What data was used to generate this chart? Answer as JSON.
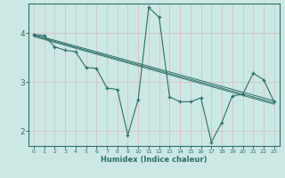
{
  "xlabel": "Humidex (Indice chaleur)",
  "bg_color": "#cce8e4",
  "grid_color": "#d4c8c8",
  "line_color": "#2d7068",
  "xlim": [
    -0.5,
    23.5
  ],
  "ylim": [
    1.7,
    4.6
  ],
  "yticks": [
    2,
    3,
    4
  ],
  "xticks": [
    0,
    1,
    2,
    3,
    4,
    5,
    6,
    7,
    8,
    9,
    10,
    11,
    12,
    13,
    14,
    15,
    16,
    17,
    18,
    19,
    20,
    21,
    22,
    23
  ],
  "line1_x": [
    0,
    1,
    2,
    3,
    4,
    5,
    6,
    7,
    8,
    9,
    10,
    11,
    12,
    13,
    14,
    15,
    16,
    17,
    18,
    19,
    20,
    21,
    22,
    23
  ],
  "line1_y": [
    3.97,
    3.95,
    3.72,
    3.65,
    3.62,
    3.3,
    3.28,
    2.88,
    2.85,
    1.92,
    2.65,
    4.52,
    4.32,
    2.7,
    2.6,
    2.6,
    2.68,
    1.78,
    2.18,
    2.72,
    2.75,
    3.18,
    3.05,
    2.6
  ],
  "line2_x": [
    0,
    23
  ],
  "line2_y": [
    3.97,
    2.62
  ],
  "line3_x": [
    0,
    23
  ],
  "line3_y": [
    3.95,
    2.58
  ],
  "line4_x": [
    0,
    23
  ],
  "line4_y": [
    3.93,
    2.55
  ],
  "xlabel_fontsize": 6.0,
  "xtick_fontsize": 4.5,
  "ytick_fontsize": 6.5
}
